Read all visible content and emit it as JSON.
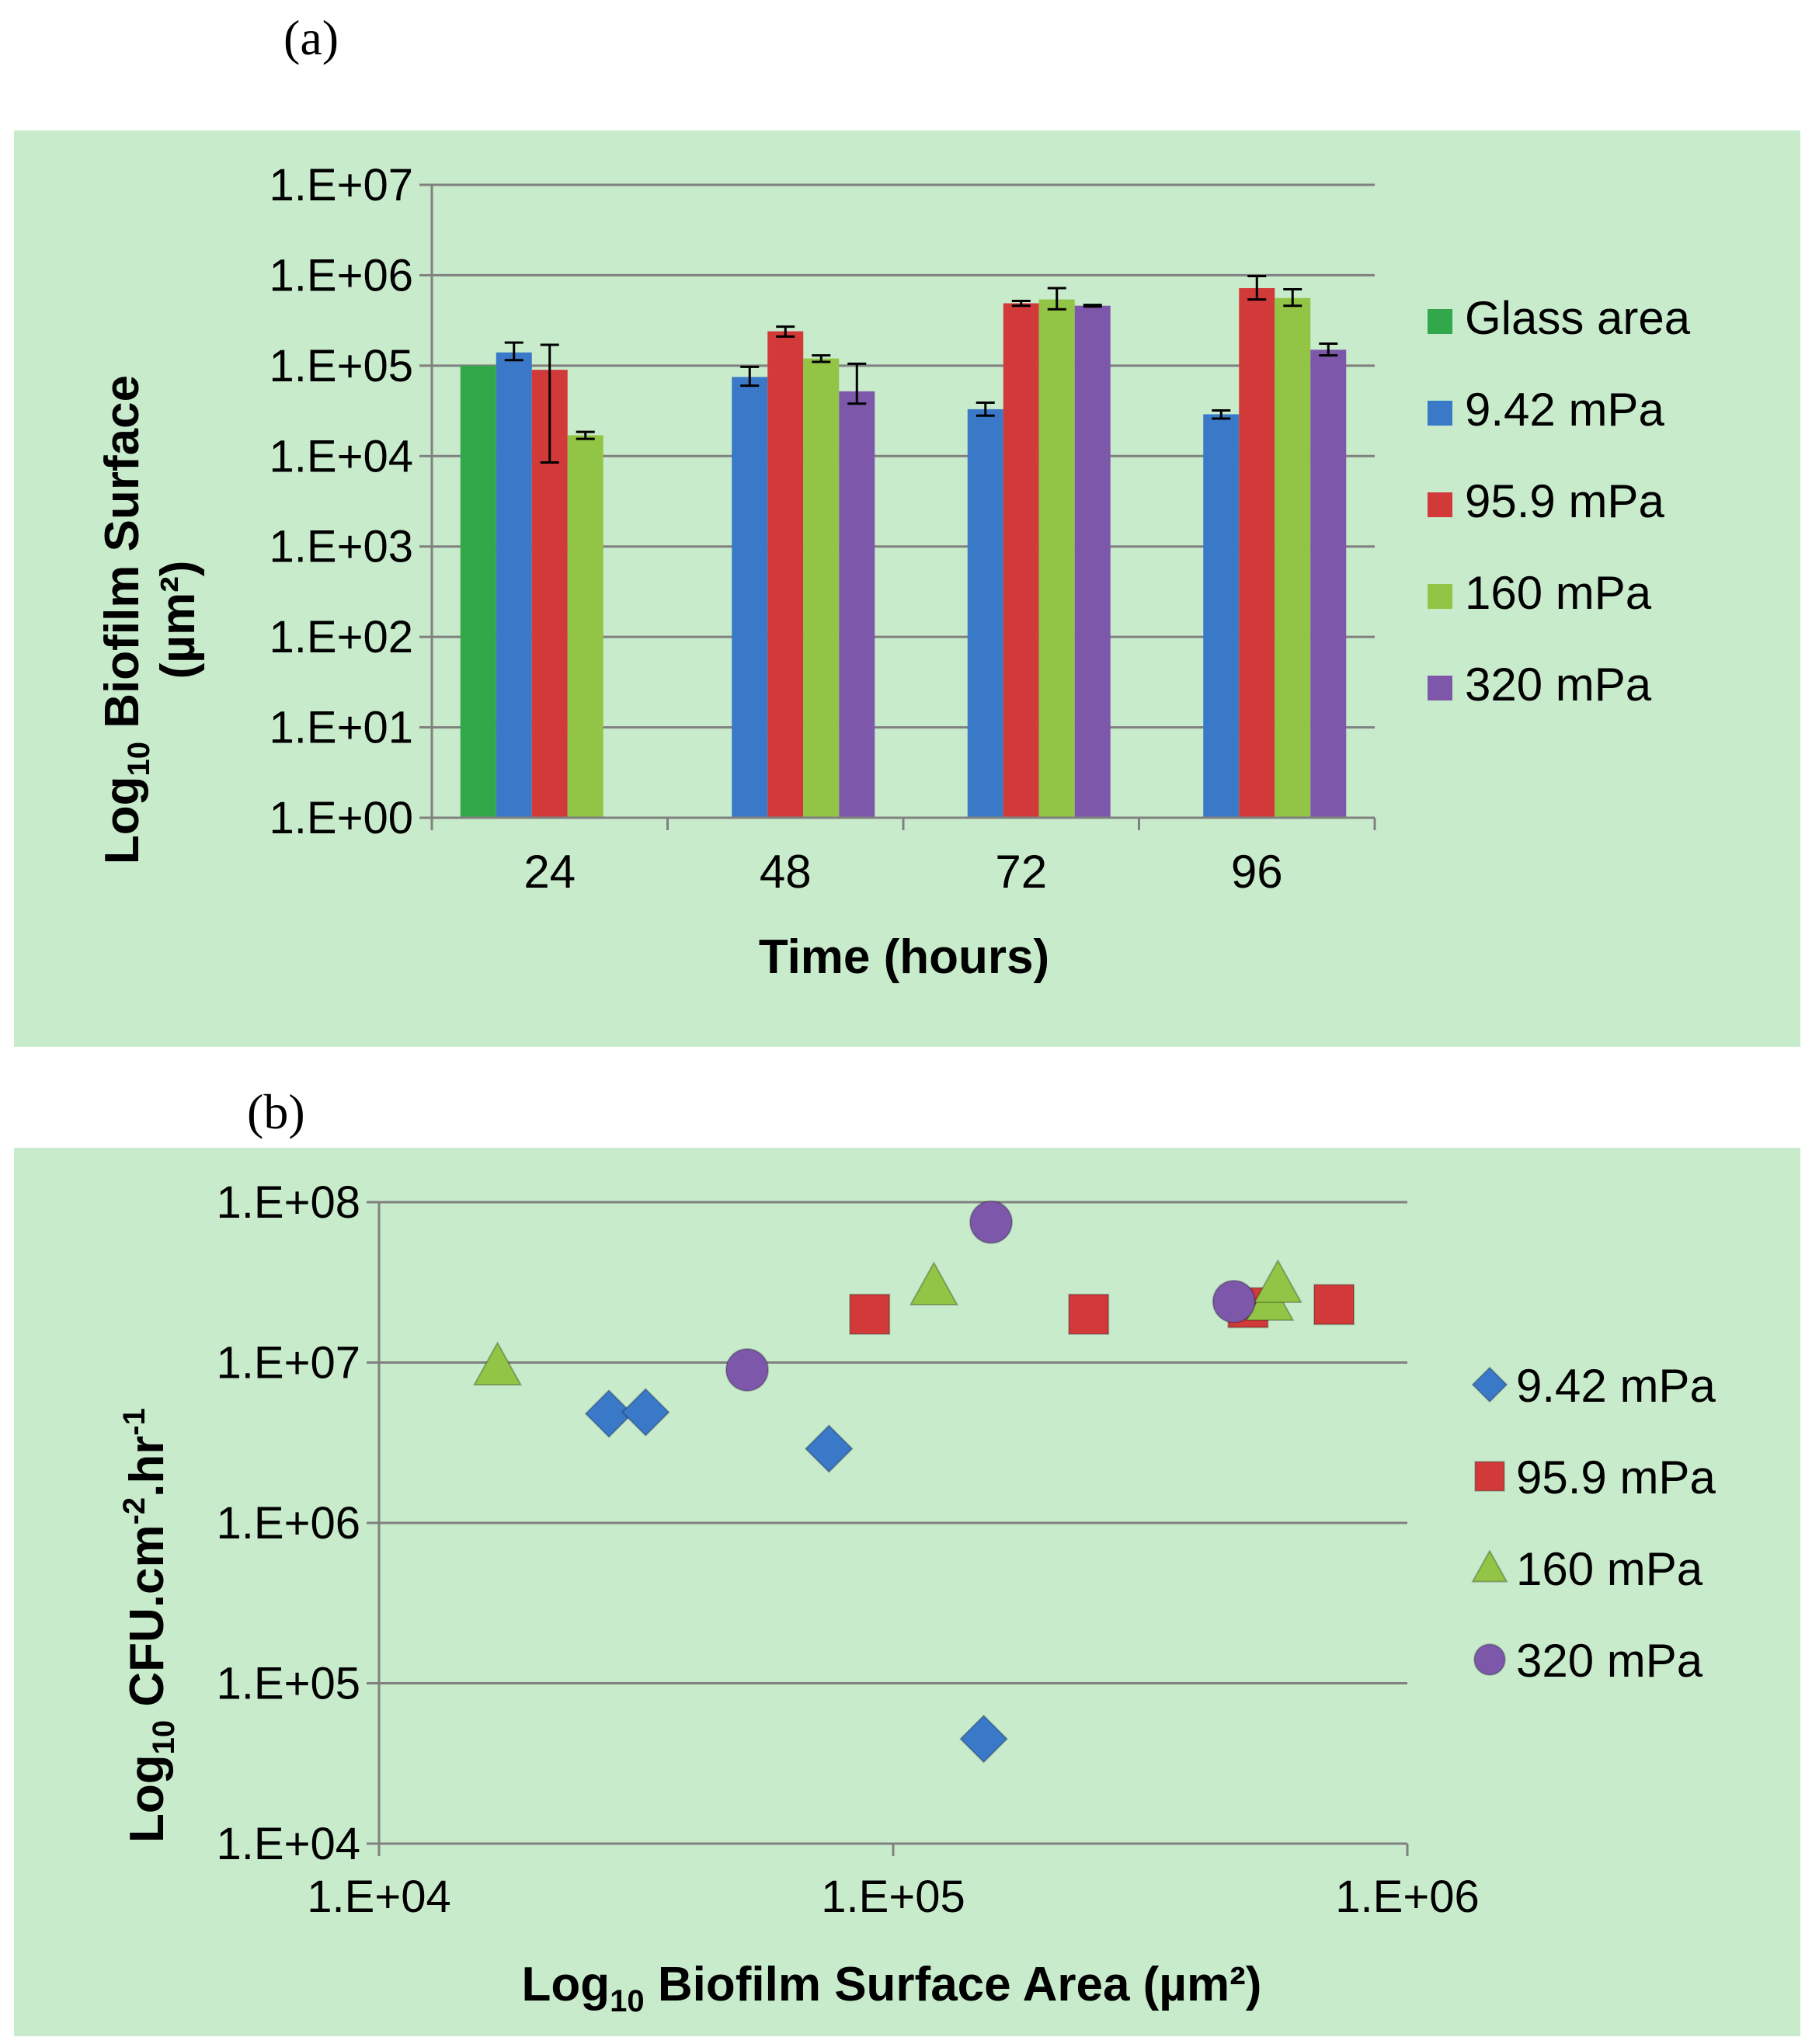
{
  "panel_a": {
    "label": "(a)"
  },
  "panel_b": {
    "label": "(b)"
  },
  "colors": {
    "glass": "#33a84a",
    "s942": "#3a78c8",
    "s959": "#d23a3a",
    "s160": "#92c446",
    "s320": "#7d58aa",
    "background": "#c8ebcc",
    "grid": "#808080"
  },
  "chart_data": [
    {
      "type": "bar",
      "title": "",
      "y_scale": "log",
      "xlabel": "Time (hours)",
      "ylabel_main": "Log",
      "ylabel_sub": "10",
      "ylabel_rest": " Biofilm Surface",
      "ylabel_line2": "(µm²)",
      "ylim": [
        1,
        10000000
      ],
      "yticks": [
        "1.E+00",
        "1.E+01",
        "1.E+02",
        "1.E+03",
        "1.E+04",
        "1.E+05",
        "1.E+06",
        "1.E+07"
      ],
      "categories": [
        "24",
        "48",
        "72",
        "96"
      ],
      "legend_position": "right",
      "series": [
        {
          "name": "Glass area",
          "color_key": "glass",
          "values": [
            100000,
            null,
            null,
            null
          ],
          "errors": [
            null,
            null,
            null,
            null
          ]
        },
        {
          "name": "9.42 mPa",
          "color_key": "s942",
          "values": [
            140000,
            75000,
            33000,
            29000
          ],
          "errors": [
            [
              115000,
              180000
            ],
            [
              60000,
              97000
            ],
            [
              28000,
              39000
            ],
            [
              26000,
              32000
            ]
          ]
        },
        {
          "name": "95.9 mPa",
          "color_key": "s959",
          "values": [
            90000,
            240000,
            490000,
            720000
          ],
          "errors": [
            [
              8500,
              170000
            ],
            [
              210000,
              270000
            ],
            [
              460000,
              520000
            ],
            [
              540000,
              980000
            ]
          ]
        },
        {
          "name": "160 mPa",
          "color_key": "s160",
          "values": [
            17000,
            120000,
            540000,
            560000
          ],
          "errors": [
            [
              15500,
              18500
            ],
            [
              110000,
              130000
            ],
            [
              420000,
              720000
            ],
            [
              460000,
              700000
            ]
          ]
        },
        {
          "name": "320 mPa",
          "color_key": "s320",
          "values": [
            null,
            52000,
            460000,
            150000
          ],
          "errors": [
            null,
            [
              38000,
              105000
            ],
            [
              450000,
              470000
            ],
            [
              130000,
              175000
            ]
          ]
        }
      ]
    },
    {
      "type": "scatter",
      "title": "",
      "x_scale": "log",
      "y_scale": "log",
      "xlabel_main": "Log",
      "xlabel_sub": "10",
      "xlabel_rest": " Biofilm Surface Area (µm²)",
      "ylabel_main": "Log",
      "ylabel_sub": "10",
      "ylabel_rest": " CFU.cm",
      "ylabel_sup1": "-2",
      "ylabel_mid": ".hr",
      "ylabel_sup2": "-1",
      "xlim": [
        10000,
        1000000
      ],
      "ylim": [
        10000,
        100000000
      ],
      "xticks": [
        "1.E+04",
        "1.E+05",
        "1.E+06"
      ],
      "yticks": [
        "1.E+04",
        "1.E+05",
        "1.E+06",
        "1.E+07",
        "1.E+08"
      ],
      "legend_position": "right",
      "series": [
        {
          "name": "9.42 mPa",
          "marker": "diamond",
          "color_key": "s942",
          "points": [
            [
              28000,
              4800000
            ],
            [
              33000,
              4900000
            ],
            [
              75000,
              2900000
            ],
            [
              150000,
              45000
            ]
          ]
        },
        {
          "name": "95.9 mPa",
          "marker": "square",
          "color_key": "s959",
          "points": [
            [
              90000,
              20000000
            ],
            [
              240000,
              20000000
            ],
            [
              490000,
              22000000
            ],
            [
              720000,
              23000000
            ]
          ]
        },
        {
          "name": "160 mPa",
          "marker": "triangle",
          "color_key": "s160",
          "points": [
            [
              17000,
              9500000
            ],
            [
              120000,
              30000000
            ],
            [
              540000,
              24000000
            ],
            [
              560000,
              31000000
            ]
          ]
        },
        {
          "name": "320 mPa",
          "marker": "circle",
          "color_key": "s320",
          "points": [
            [
              52000,
              9000000
            ],
            [
              155000,
              75000000
            ],
            [
              460000,
              24000000
            ]
          ]
        }
      ]
    }
  ]
}
